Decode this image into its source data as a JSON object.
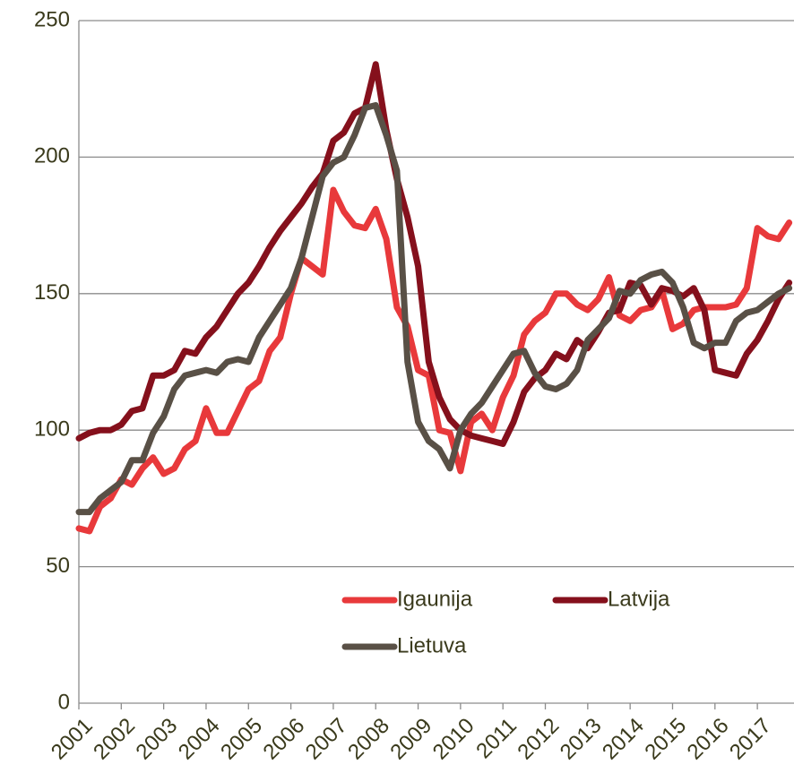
{
  "chart_data": {
    "type": "line",
    "categories": [
      "2001",
      null,
      null,
      null,
      "2002",
      null,
      null,
      null,
      "2003",
      null,
      null,
      null,
      "2004",
      null,
      null,
      null,
      "2005",
      null,
      null,
      null,
      "2006",
      null,
      null,
      null,
      "2007",
      null,
      null,
      null,
      "2008",
      null,
      null,
      null,
      "2009",
      null,
      null,
      null,
      "2010",
      null,
      null,
      null,
      "2011",
      null,
      null,
      null,
      "2012",
      null,
      null,
      null,
      "2013",
      null,
      null,
      null,
      "2014",
      null,
      null,
      null,
      "2015",
      null,
      null,
      null,
      "2016",
      null,
      null,
      null,
      "2017",
      null,
      null,
      null
    ],
    "series": [
      {
        "name": "Igaunija",
        "color": "#e8393b",
        "values": [
          64,
          63,
          72,
          75,
          82,
          80,
          86,
          90,
          84,
          86,
          93,
          96,
          108,
          99,
          99,
          107,
          115,
          118,
          129,
          134,
          150,
          163,
          160,
          157,
          188,
          180,
          175,
          174,
          181,
          170,
          145,
          138,
          122,
          120,
          100,
          99,
          85,
          103,
          106,
          100,
          112,
          120,
          135,
          140,
          143,
          150,
          150,
          146,
          144,
          148,
          156,
          142,
          140,
          144,
          145,
          151,
          137,
          139,
          144,
          145,
          145,
          145,
          146,
          152,
          174,
          171,
          170,
          176
        ]
      },
      {
        "name": "Latvija",
        "color": "#85101c",
        "values": [
          97,
          99,
          100,
          100,
          102,
          107,
          108,
          120,
          120,
          122,
          129,
          128,
          134,
          138,
          144,
          150,
          154,
          160,
          167,
          173,
          178,
          183,
          189,
          194,
          206,
          209,
          216,
          218,
          234,
          210,
          192,
          178,
          160,
          125,
          112,
          104,
          100,
          98,
          97,
          96,
          95,
          103,
          114,
          119,
          122,
          128,
          126,
          133,
          130,
          136,
          143,
          144,
          154,
          153,
          146,
          152,
          151,
          149,
          152,
          144,
          122,
          121,
          120,
          128,
          133,
          140,
          148,
          154
        ]
      },
      {
        "name": "Lietuva",
        "color": "#595046",
        "values": [
          70,
          70,
          75,
          78,
          81,
          89,
          89,
          99,
          105,
          115,
          120,
          121,
          122,
          121,
          125,
          126,
          125,
          134,
          140,
          146,
          152,
          163,
          178,
          193,
          198,
          200,
          208,
          218,
          219,
          208,
          195,
          125,
          103,
          96,
          93,
          86,
          100,
          106,
          110,
          116,
          122,
          128,
          129,
          121,
          116,
          115,
          117,
          122,
          133,
          137,
          141,
          151,
          150,
          155,
          157,
          158,
          154,
          145,
          132,
          130,
          132,
          132,
          140,
          143,
          144,
          147,
          150,
          152
        ]
      }
    ],
    "ylim": [
      0,
      250
    ],
    "yticks": [
      0,
      50,
      100,
      150,
      200,
      250
    ],
    "grid": true,
    "legend": "lower-center"
  }
}
